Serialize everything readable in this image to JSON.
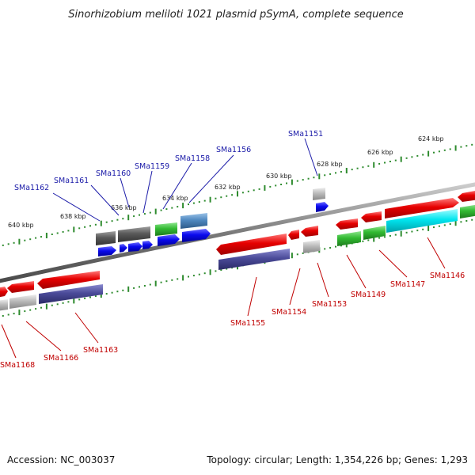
{
  "title": "Sinorhizobium meliloti 1021 plasmid pSymA, complete sequence",
  "footer": {
    "accession": "Accession: NC_003037",
    "summary": "Topology: circular; Length: 1,354,226 bp; Genes: 1,293"
  },
  "ticks": [
    "640 kbp",
    "638 kbp",
    "636 kbp",
    "634 kbp",
    "632 kbp",
    "630 kbp",
    "628 kbp",
    "626 kbp",
    "624 kbp"
  ],
  "top_labels": [
    "SMa1162",
    "SMa1161",
    "SMa1160",
    "SMa1159",
    "SMa1158",
    "SMa1156",
    "SMa1151"
  ],
  "bottom_labels": [
    "SMa1168",
    "SMa1166",
    "SMa1163",
    "SMa1155",
    "SMa1154",
    "SMa1153",
    "SMa1149",
    "SMa1147",
    "SMa1146"
  ],
  "colors": {
    "backbone": "#808080",
    "tick": "#2e8b2e",
    "cog_red": "#e60000",
    "cog_blue": "#0a0aee",
    "cog_green": "#33bb33",
    "cog_cyan": "#00e5ee",
    "cog_navy": "#4b4b99",
    "cog_grey": "#bbbbbb",
    "cog_darkgrey": "#5a5a5a",
    "cog_steel": "#4f88c0",
    "label_blue": "#1a1aa8",
    "label_red": "#c00000"
  }
}
